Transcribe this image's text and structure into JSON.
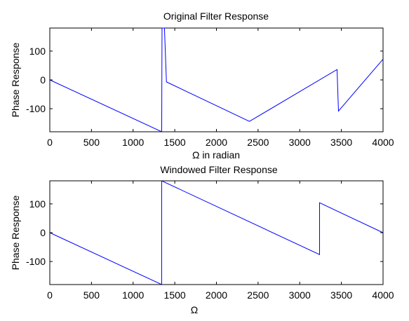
{
  "chart_data": [
    {
      "type": "line",
      "title": "Original Filter Response",
      "xlabel": "Ω in radian",
      "ylabel": "Phase Response",
      "xlim": [
        0,
        4000
      ],
      "ylim": [
        -180,
        180
      ],
      "xticks": [
        "0",
        "500",
        "1000",
        "1500",
        "2000",
        "2500",
        "3000",
        "3500",
        "4000"
      ],
      "yticks": [
        "100",
        "0",
        "-100"
      ],
      "grid": false,
      "legend": "none",
      "color": "#0000ff",
      "series": [
        {
          "x": [
            0,
            1343,
            1343,
            1347,
            1347,
            1376,
            1376,
            1400,
            1400,
            2396,
            2396,
            3448,
            3448,
            3465,
            3465,
            4000
          ],
          "y": [
            0,
            -180,
            -180,
            180,
            180,
            180,
            180,
            -7,
            -7,
            -144,
            -144,
            36,
            36,
            -108,
            -108,
            72
          ]
        }
      ]
    },
    {
      "type": "line",
      "title": "Windowed Filter Response",
      "xlabel": "Ω",
      "ylabel": "Phase Response",
      "xlim": [
        0,
        4000
      ],
      "ylim": [
        -180,
        180
      ],
      "xticks": [
        "0",
        "500",
        "1000",
        "1500",
        "2000",
        "2500",
        "3000",
        "3500",
        "4000"
      ],
      "yticks": [
        "100",
        "0",
        "-100"
      ],
      "grid": false,
      "legend": "none",
      "color": "#0000ff",
      "series": [
        {
          "x": [
            0,
            1343,
            1343,
            3238,
            3238,
            4000
          ],
          "y": [
            0,
            -180,
            180,
            -76,
            104,
            0
          ]
        }
      ]
    }
  ]
}
